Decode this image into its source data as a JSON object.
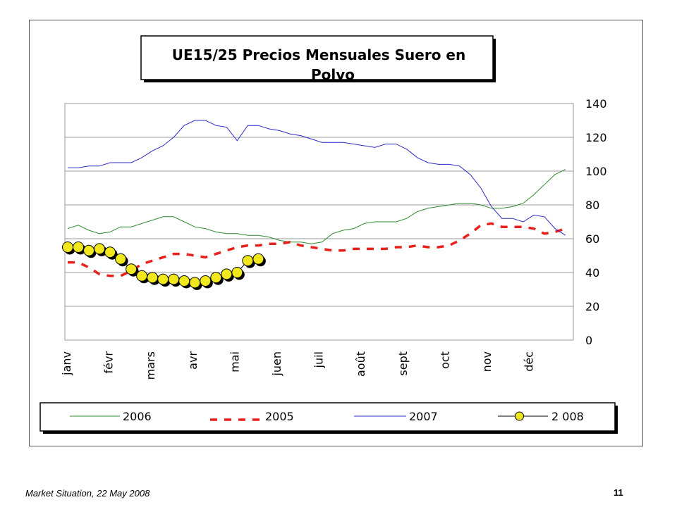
{
  "chart_data": {
    "type": "line",
    "title": "UE15/25 Precios Mensuales Suero en Polvo",
    "categories": [
      "janv",
      "févr",
      "mars",
      "avr",
      "mai",
      "juen",
      "juil",
      "août",
      "sept",
      "oct",
      "nov",
      "déc"
    ],
    "ylim": [
      0,
      140
    ],
    "yticks": [
      0,
      20,
      40,
      60,
      80,
      100,
      120,
      140
    ],
    "grid": true,
    "legend_position": "bottom",
    "colors": {
      "2006": "#2e8b2e",
      "2005": "#e8201c",
      "2007": "#2b2bc8",
      "2 008": "#f0e81c"
    },
    "series": [
      {
        "name": "2006",
        "x": [
          0,
          0.25,
          0.5,
          0.75,
          1,
          1.25,
          1.5,
          1.75,
          2,
          2.25,
          2.5,
          2.75,
          3,
          3.25,
          3.5,
          3.75,
          4,
          4.25,
          4.5,
          4.75,
          5,
          5.25,
          5.5,
          5.75,
          6,
          6.25,
          6.5,
          6.75,
          7,
          7.25,
          7.5,
          7.75,
          8,
          8.25,
          8.5,
          8.75,
          9,
          9.25,
          9.5,
          9.75,
          10,
          10.25,
          10.5,
          10.75,
          11,
          11.25,
          11.5,
          11.75
        ],
        "values": [
          66,
          68,
          65,
          63,
          64,
          67,
          67,
          69,
          71,
          73,
          73,
          70,
          67,
          66,
          64,
          63,
          63,
          62,
          62,
          61,
          59,
          58,
          58,
          57,
          58,
          63,
          65,
          66,
          69,
          70,
          70,
          70,
          72,
          76,
          78,
          79,
          80,
          81,
          81,
          80,
          78,
          78,
          79,
          81,
          86,
          92,
          98,
          101
        ]
      },
      {
        "name": "2005",
        "x": [
          0,
          0.25,
          0.5,
          0.75,
          1,
          1.25,
          1.5,
          1.75,
          2,
          2.25,
          2.5,
          2.75,
          3,
          3.25,
          3.5,
          3.75,
          4,
          4.25,
          4.5,
          4.75,
          5,
          5.25,
          5.5,
          5.75,
          6,
          6.25,
          6.5,
          6.75,
          7,
          7.25,
          7.5,
          7.75,
          8,
          8.25,
          8.5,
          8.75,
          9,
          9.25,
          9.5,
          9.75,
          10,
          10.25,
          10.5,
          10.75,
          11,
          11.25,
          11.5,
          11.75
        ],
        "values": [
          46,
          46,
          43,
          39,
          38,
          38,
          41,
          45,
          47,
          49,
          51,
          51,
          50,
          49,
          51,
          53,
          55,
          56,
          56,
          57,
          57,
          58,
          56,
          55,
          54,
          53,
          53,
          54,
          54,
          54,
          54,
          55,
          55,
          56,
          55,
          55,
          56,
          59,
          63,
          68,
          69,
          67,
          67,
          67,
          66,
          63,
          64,
          66
        ]
      },
      {
        "name": "2007",
        "x": [
          0,
          0.25,
          0.5,
          0.75,
          1,
          1.25,
          1.5,
          1.75,
          2,
          2.25,
          2.5,
          2.75,
          3,
          3.25,
          3.5,
          3.75,
          4,
          4.25,
          4.5,
          4.75,
          5,
          5.25,
          5.5,
          5.75,
          6,
          6.25,
          6.5,
          6.75,
          7,
          7.25,
          7.5,
          7.75,
          8,
          8.25,
          8.5,
          8.75,
          9,
          9.25,
          9.5,
          9.75,
          10,
          10.25,
          10.5,
          10.75,
          11,
          11.25,
          11.5,
          11.75
        ],
        "values": [
          102,
          102,
          103,
          103,
          105,
          105,
          105,
          108,
          112,
          115,
          120,
          127,
          130,
          130,
          127,
          126,
          118,
          127,
          127,
          125,
          124,
          122,
          121,
          119,
          117,
          117,
          117,
          116,
          115,
          114,
          116,
          116,
          113,
          108,
          105,
          104,
          104,
          103,
          98,
          90,
          79,
          72,
          72,
          70,
          74,
          73,
          66,
          62
        ]
      },
      {
        "name": "2 008",
        "x": [
          0,
          0.25,
          0.5,
          0.75,
          1,
          1.25,
          1.5,
          1.75,
          2,
          2.25,
          2.5,
          2.75,
          3,
          3.25,
          3.5,
          3.75,
          4,
          4.25,
          4.5
        ],
        "values": [
          55,
          55,
          53,
          54,
          52,
          48,
          42,
          38,
          37,
          36,
          36,
          35,
          34,
          35,
          37,
          39,
          40,
          47,
          48
        ]
      }
    ]
  },
  "footer": {
    "caption": "Market Situation, 22 May 2008",
    "page_number": "11"
  }
}
